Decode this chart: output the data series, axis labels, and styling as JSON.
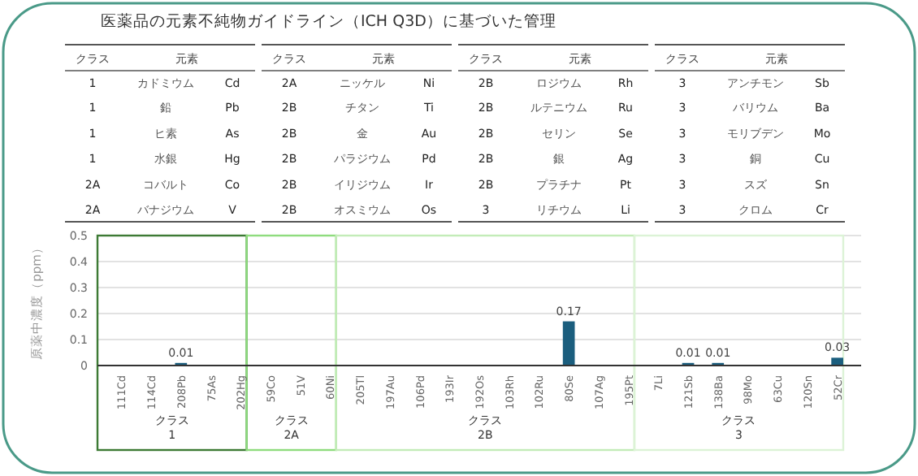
{
  "chart_data": [
    {
      "type": "other",
      "title": "医薬品の元素不純物ガイドライン（ICH Q3D）に基づいた管理",
      "annotations": [
        "クラス",
        "元素",
        "1",
        "カドミウム",
        "Cd",
        "1",
        "鉛",
        "Pb",
        "1",
        "ヒ素",
        "As",
        "1",
        "水銀",
        "Hg",
        "2A",
        "コバルト",
        "Co",
        "2A",
        "バナジウム",
        "V",
        "クラス",
        "元素",
        "2A",
        "ニッケル",
        "Ni",
        "2B",
        "チタン",
        "Ti",
        "2B",
        "金",
        "Au",
        "2B",
        "パラジウム",
        "Pd",
        "2B",
        "イリジウム",
        "Ir",
        "2B",
        "オスミウム",
        "Os",
        "クラス",
        "元素",
        "2B",
        "ロジウム",
        "Rh",
        "2B",
        "ルテニウム",
        "Ru",
        "2B",
        "セリン",
        "Se",
        "2B",
        "銀",
        "Ag",
        "2B",
        "プラチナ",
        "Pt",
        "3",
        "リチウム",
        "Li",
        "クラス",
        "元素",
        "3",
        "アンチモン",
        "Sb",
        "3",
        "バリウム",
        "Ba",
        "3",
        "モリブデン",
        "Mo",
        "3",
        "銅",
        "Cu",
        "3",
        "スズ",
        "Sn",
        "3",
        "クロム",
        "Cr"
      ]
    },
    {
      "type": "bar",
      "ylabel": "原薬中濃度（ppm）",
      "categories": [
        "111Cd",
        "114Cd",
        "208Pb",
        "75As",
        "202Hg",
        "59Co",
        "51V",
        "60Ni",
        "205Tl",
        "197Au",
        "106Pd",
        "193Ir",
        "192Os",
        "103Rh",
        "102Ru",
        "80Se",
        "107Ag",
        "195Pt",
        "7Li",
        "121Sb",
        "138Ba",
        "98Mo",
        "63Cu",
        "120Sn",
        "52Cr"
      ],
      "values": [
        0,
        0,
        0.01,
        0,
        0,
        0,
        0,
        0,
        0,
        0,
        0,
        0,
        0,
        0,
        0,
        0.17,
        0,
        0,
        0,
        0.01,
        0.01,
        0,
        0,
        0,
        0.03
      ],
      "value_labels": [
        null,
        null,
        "0.01",
        null,
        null,
        null,
        null,
        null,
        null,
        null,
        null,
        null,
        null,
        null,
        null,
        "0.17",
        null,
        null,
        null,
        "0.01",
        "0.01",
        null,
        null,
        null,
        "0.03"
      ],
      "color": "#1b5e7e",
      "ylim": [
        0,
        0.5
      ],
      "yticks": [
        0,
        0.1,
        0.2,
        0.3,
        0.4,
        0.5
      ],
      "grid": "y",
      "annotations": [
        "クラス 1",
        "クラス 2A",
        "クラス 2B",
        "クラス 3"
      ]
    }
  ]
}
